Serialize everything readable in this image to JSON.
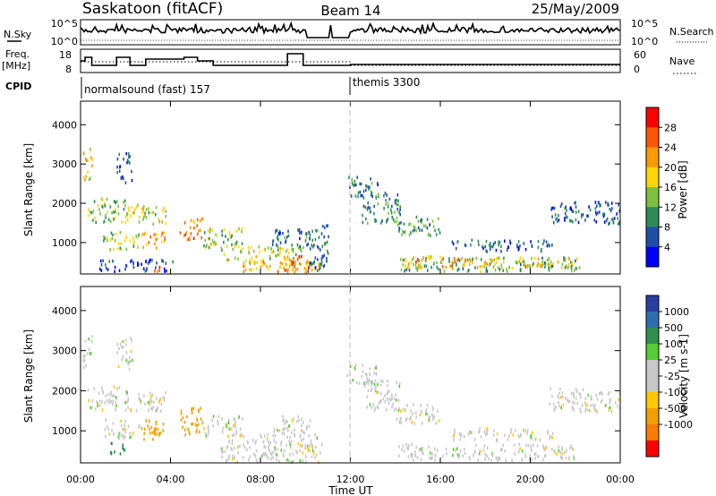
{
  "header": {
    "station": "Saskatoon (fitACF)",
    "beam": "Beam 14",
    "date": "25/May/2009"
  },
  "panels": {
    "nsky": {
      "left_label": "N.Sky",
      "left_ticks": [
        "10^5",
        "10^0"
      ],
      "right_label": "N.Search",
      "right_ticks": [
        "10^5",
        "10^0"
      ]
    },
    "freq": {
      "left_label_top": "Freq.",
      "left_label_bottom": "[MHz]",
      "left_ticks": [
        "18",
        "8"
      ],
      "right_label": "Nave",
      "right_ticks": [
        "60",
        "0"
      ]
    },
    "cpid": {
      "label": "CPID",
      "segments": [
        {
          "name": "normalsound (fast) 157",
          "start_hour": 0
        },
        {
          "name": "themis 3300",
          "start_hour": 12
        }
      ]
    }
  },
  "colors": {
    "power": [
      "#0000ff",
      "#1e4fa8",
      "#2e8b57",
      "#7fbf3f",
      "#ffd700",
      "#ff9900",
      "#ff5500",
      "#ff0000"
    ],
    "velocity": [
      "#ff0000",
      "#ff7a00",
      "#f2a000",
      "#ffc800",
      "#c8c8c8",
      "#c8c8c8",
      "#55cc33",
      "#2f8f4f",
      "#2f6fb0",
      "#2a3fa0"
    ]
  },
  "chart_data": [
    {
      "type": "heatmap",
      "quantity": "power",
      "ylabel": "Slant Range [km]",
      "y_ticks": [
        1000,
        2000,
        3000,
        4000
      ],
      "ylim": [
        200,
        4600
      ],
      "xlim": [
        0,
        24
      ],
      "x_tick_labels": [
        "00:00",
        "04:00",
        "08:00",
        "12:00",
        "16:00",
        "20:00",
        "00:00"
      ],
      "colorbar_label": "Power [dB]",
      "colorbar_ticks": [
        "4",
        "8",
        "12",
        "16",
        "20",
        "24",
        "28"
      ],
      "colorbar_range": [
        0,
        32
      ],
      "regions": [
        {
          "t0": 0.1,
          "t1": 0.5,
          "r0": 2600,
          "r1": 3450,
          "v": 18
        },
        {
          "t0": 0.3,
          "t1": 2.1,
          "r0": 1550,
          "r1": 2150,
          "v": 14
        },
        {
          "t0": 1.6,
          "t1": 2.3,
          "r0": 2550,
          "r1": 3350,
          "v": 7
        },
        {
          "t0": 0.8,
          "t1": 4.2,
          "r0": 300,
          "r1": 600,
          "v": 5
        },
        {
          "t0": 1.0,
          "t1": 2.6,
          "r0": 850,
          "r1": 1300,
          "v": 15
        },
        {
          "t0": 2.0,
          "t1": 3.8,
          "r0": 1500,
          "r1": 2000,
          "v": 16
        },
        {
          "t0": 2.7,
          "t1": 3.8,
          "r0": 900,
          "r1": 1300,
          "v": 22
        },
        {
          "t0": 3.1,
          "t1": 3.5,
          "r0": 250,
          "r1": 450,
          "v": 28
        },
        {
          "t0": 4.4,
          "t1": 5.4,
          "r0": 1100,
          "r1": 1650,
          "v": 24
        },
        {
          "t0": 5.4,
          "t1": 7.2,
          "r0": 900,
          "r1": 1400,
          "v": 14
        },
        {
          "t0": 6.2,
          "t1": 9.8,
          "r0": 500,
          "r1": 950,
          "v": 16
        },
        {
          "t0": 7.2,
          "t1": 10.8,
          "r0": 250,
          "r1": 550,
          "v": 20
        },
        {
          "t0": 8.5,
          "t1": 10.2,
          "r0": 900,
          "r1": 1400,
          "v": 8
        },
        {
          "t0": 9.0,
          "t1": 10.3,
          "r0": 300,
          "r1": 700,
          "v": 26
        },
        {
          "t0": 10.0,
          "t1": 11.0,
          "r0": 300,
          "r1": 1500,
          "v": 8
        },
        {
          "t0": 11.8,
          "t1": 13.2,
          "r0": 2200,
          "r1": 2700,
          "v": 8
        },
        {
          "t0": 12.5,
          "t1": 14.2,
          "r0": 1500,
          "r1": 2300,
          "v": 9
        },
        {
          "t0": 14.0,
          "t1": 16.0,
          "r0": 1200,
          "r1": 1700,
          "v": 11
        },
        {
          "t0": 14.0,
          "t1": 22.2,
          "r0": 300,
          "r1": 650,
          "v": 12
        },
        {
          "t0": 14.3,
          "t1": 16.8,
          "r0": 380,
          "r1": 700,
          "v": 22
        },
        {
          "t0": 17.0,
          "t1": 21.8,
          "r0": 380,
          "r1": 650,
          "v": 19
        },
        {
          "t0": 16.5,
          "t1": 21.0,
          "r0": 800,
          "r1": 1100,
          "v": 7
        },
        {
          "t0": 20.8,
          "t1": 24.0,
          "r0": 1500,
          "r1": 2100,
          "v": 7
        }
      ]
    },
    {
      "type": "heatmap",
      "quantity": "velocity",
      "ylabel": "Slant Range [km]",
      "y_ticks": [
        1000,
        2000,
        3000,
        4000
      ],
      "ylim": [
        200,
        4600
      ],
      "xlim": [
        0,
        24
      ],
      "x_tick_labels": [
        "00:00",
        "04:00",
        "08:00",
        "12:00",
        "16:00",
        "20:00",
        "00:00"
      ],
      "xlabel": "Time UT",
      "colorbar_label": "Velocity [m s-1]",
      "colorbar_ticks": [
        "1000",
        "500",
        "100",
        "25",
        "-25",
        "-100",
        "-500",
        "-1000"
      ],
      "regions": [
        {
          "t0": 0.1,
          "t1": 0.5,
          "r0": 2600,
          "r1": 3450,
          "v": 0
        },
        {
          "t0": 0.3,
          "t1": 2.1,
          "r0": 1550,
          "r1": 2150,
          "v": 0
        },
        {
          "t0": 1.6,
          "t1": 2.3,
          "r0": 2550,
          "r1": 3350,
          "v": 0
        },
        {
          "t0": 1.0,
          "t1": 2.6,
          "r0": 850,
          "r1": 1300,
          "v": 0
        },
        {
          "t0": 1.2,
          "t1": 2.0,
          "r0": 450,
          "r1": 750,
          "v": 200
        },
        {
          "t0": 2.0,
          "t1": 3.8,
          "r0": 1500,
          "r1": 2000,
          "v": 0
        },
        {
          "t0": 2.6,
          "t1": 3.8,
          "r0": 800,
          "r1": 1300,
          "v": -150
        },
        {
          "t0": 4.4,
          "t1": 5.4,
          "r0": 900,
          "r1": 1600,
          "v": -200
        },
        {
          "t0": 5.4,
          "t1": 7.2,
          "r0": 900,
          "r1": 1400,
          "v": 0
        },
        {
          "t0": 6.2,
          "t1": 10.8,
          "r0": 250,
          "r1": 950,
          "v": 0
        },
        {
          "t0": 8.5,
          "t1": 10.2,
          "r0": 900,
          "r1": 1400,
          "v": 0
        },
        {
          "t0": 11.8,
          "t1": 13.2,
          "r0": 2200,
          "r1": 2700,
          "v": 0
        },
        {
          "t0": 12.5,
          "t1": 14.2,
          "r0": 1500,
          "r1": 2300,
          "v": 0
        },
        {
          "t0": 14.0,
          "t1": 16.0,
          "r0": 1200,
          "r1": 1700,
          "v": 0
        },
        {
          "t0": 14.0,
          "t1": 22.2,
          "r0": 300,
          "r1": 700,
          "v": 0
        },
        {
          "t0": 16.5,
          "t1": 21.0,
          "r0": 800,
          "r1": 1100,
          "v": 0
        },
        {
          "t0": 20.8,
          "t1": 24.0,
          "r0": 1500,
          "r1": 2100,
          "v": 0
        }
      ]
    }
  ]
}
